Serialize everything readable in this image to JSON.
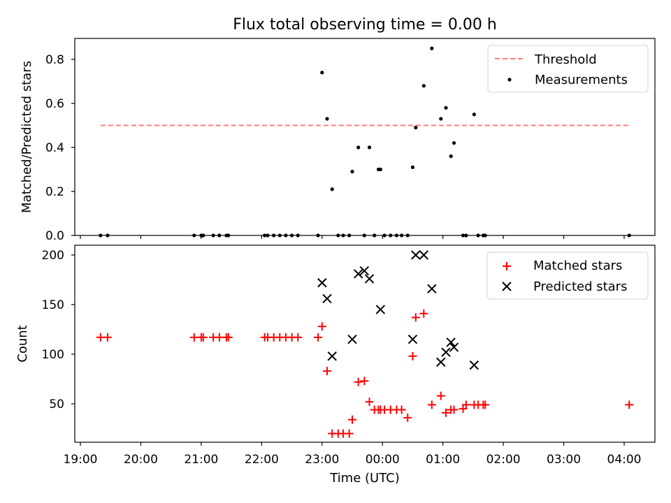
{
  "chart_data": [
    {
      "type": "scatter",
      "title": "Flux total observing time = 0.00 h",
      "ylabel": "Matched/Predicted stars",
      "ylim": [
        0,
        0.9
      ],
      "yticks": [
        "0.0",
        "0.2",
        "0.4",
        "0.6",
        "0.8"
      ],
      "grid": false,
      "legend_placement": "top-right",
      "threshold": {
        "name": "Threshold",
        "value": 0.5,
        "x_start": "19:20",
        "x_end": "04:05",
        "color": "#ff7a7a"
      },
      "series": [
        {
          "name": "Measurements",
          "color": "#000000",
          "x": [
            "19:20",
            "19:27",
            "20:53",
            "21:00",
            "21:02",
            "21:12",
            "21:18",
            "21:25",
            "21:27",
            "22:03",
            "22:06",
            "22:12",
            "22:18",
            "22:24",
            "22:30",
            "22:36",
            "22:56",
            "23:00",
            "23:05",
            "23:10",
            "23:16",
            "23:21",
            "23:27",
            "23:30",
            "23:36",
            "23:42",
            "23:47",
            "23:52",
            "23:56",
            "23:58",
            "00:02",
            "00:08",
            "00:14",
            "00:19",
            "00:25",
            "00:30",
            "00:33",
            "00:41",
            "00:49",
            "00:58",
            "01:03",
            "01:08",
            "01:11",
            "01:20",
            "01:23",
            "01:31",
            "01:35",
            "01:40",
            "01:42",
            "04:05"
          ],
          "y": [
            0,
            0,
            0,
            0,
            0,
            0,
            0,
            0,
            0,
            0,
            0,
            0,
            0,
            0,
            0,
            0,
            0,
            0.74,
            0.53,
            0.21,
            0,
            0,
            0,
            0.29,
            0.4,
            0,
            0.4,
            0,
            0.3,
            0.3,
            0,
            0,
            0,
            0,
            0,
            0.31,
            0.49,
            0.68,
            0.85,
            0.53,
            0.58,
            0.36,
            0.42,
            0,
            0,
            0.55,
            0,
            0,
            0,
            0
          ]
        }
      ]
    },
    {
      "type": "scatter",
      "xlabel": "Time (UTC)",
      "ylabel": "Count",
      "ylim": [
        10,
        210
      ],
      "yticks": [
        "50",
        "100",
        "150",
        "200"
      ],
      "xticks": [
        "19:00",
        "20:00",
        "21:00",
        "22:00",
        "23:00",
        "00:00",
        "01:00",
        "02:00",
        "03:00",
        "04:00"
      ],
      "grid": false,
      "legend_placement": "top-right",
      "series": [
        {
          "name": "Matched stars",
          "marker": "+",
          "color": "#ff0000",
          "x": [
            "19:20",
            "19:27",
            "20:53",
            "21:00",
            "21:02",
            "21:12",
            "21:18",
            "21:25",
            "21:27",
            "22:03",
            "22:06",
            "22:12",
            "22:18",
            "22:24",
            "22:30",
            "22:36",
            "22:56",
            "23:00",
            "23:05",
            "23:10",
            "23:16",
            "23:21",
            "23:27",
            "23:30",
            "23:36",
            "23:42",
            "23:47",
            "23:52",
            "23:56",
            "23:58",
            "00:02",
            "00:08",
            "00:14",
            "00:19",
            "00:25",
            "00:30",
            "00:33",
            "00:41",
            "00:49",
            "00:58",
            "01:03",
            "01:08",
            "01:11",
            "01:20",
            "01:23",
            "01:31",
            "01:35",
            "01:40",
            "01:42",
            "04:05"
          ],
          "y": [
            117,
            117,
            117,
            117,
            117,
            117,
            117,
            117,
            117,
            117,
            117,
            117,
            117,
            117,
            117,
            117,
            117,
            128,
            83,
            20,
            20,
            20,
            20,
            34,
            72,
            73,
            52,
            44,
            44,
            44,
            44,
            44,
            44,
            44,
            36,
            98,
            137,
            141,
            49,
            58,
            41,
            44,
            44,
            45,
            49,
            49,
            49,
            49,
            49,
            49
          ]
        },
        {
          "name": "Predicted stars",
          "marker": "x",
          "color": "#000000",
          "x": [
            "23:00",
            "23:05",
            "23:10",
            "23:30",
            "23:36",
            "23:42",
            "23:47",
            "23:58",
            "00:30",
            "00:33",
            "00:41",
            "00:49",
            "00:58",
            "01:03",
            "01:08",
            "01:11",
            "01:31"
          ],
          "y": [
            172,
            156,
            98,
            115,
            181,
            184,
            176,
            145,
            115,
            200,
            200,
            166,
            92,
            102,
            112,
            107,
            89
          ]
        }
      ]
    }
  ]
}
